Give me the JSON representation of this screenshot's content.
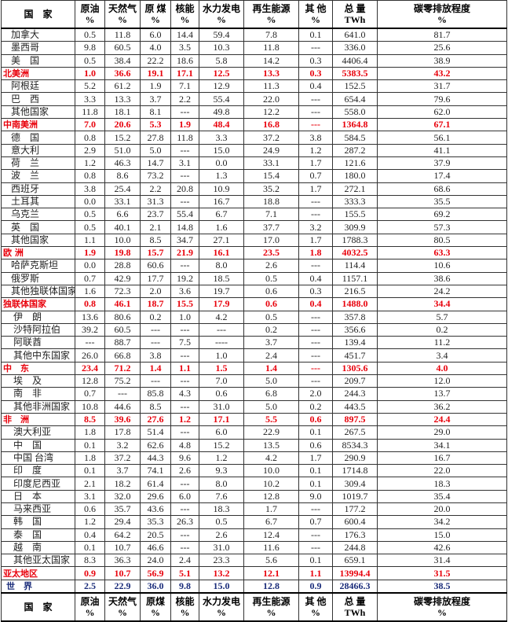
{
  "headers": [
    [
      "国　家",
      ""
    ],
    [
      "原油",
      "%"
    ],
    [
      "天然气",
      "%"
    ],
    [
      "原 煤",
      "%"
    ],
    [
      "核能",
      "%"
    ],
    [
      "水力发电",
      "%"
    ],
    [
      "再生能源",
      "%"
    ],
    [
      "其 他",
      "%"
    ],
    [
      "总 量",
      "TWh"
    ],
    [
      "碳零排放程度",
      "%"
    ]
  ],
  "footer_headers": [
    [
      "国　家",
      ""
    ],
    [
      "原油",
      "%"
    ],
    [
      "天然气",
      "%"
    ],
    [
      "原煤",
      "%"
    ],
    [
      "核能",
      "%"
    ],
    [
      "水力发电",
      "%"
    ],
    [
      "再生能源",
      "%"
    ],
    [
      "其 他",
      "%"
    ],
    [
      "总 量",
      "TWh"
    ],
    [
      "碳零排放程度",
      "%"
    ]
  ],
  "colors": {
    "region": "#e8000b",
    "world": "#1a2c7a"
  },
  "rows": [
    {
      "t": "c",
      "v": [
        "加拿大",
        "0.5",
        "11.8",
        "6.0",
        "14.4",
        "59.4",
        "7.8",
        "0.1",
        "641.0",
        "81.7"
      ]
    },
    {
      "t": "c",
      "v": [
        "墨西哥",
        "9.8",
        "60.5",
        "4.0",
        "3.5",
        "10.3",
        "11.8",
        "---",
        "336.0",
        "25.6"
      ]
    },
    {
      "t": "c",
      "v": [
        "美　国",
        "0.5",
        "38.4",
        "22.2",
        "18.6",
        "5.8",
        "14.2",
        "0.3",
        "4406.4",
        "38.9"
      ]
    },
    {
      "t": "r",
      "v": [
        "北美洲",
        "1.0",
        "36.6",
        "19.1",
        "17.1",
        "12.5",
        "13.3",
        "0.3",
        "5383.5",
        "43.2"
      ]
    },
    {
      "t": "c",
      "v": [
        "阿根廷",
        "5.2",
        "61.2",
        "1.9",
        "7.1",
        "12.9",
        "11.3",
        "0.4",
        "152.5",
        "31.7"
      ]
    },
    {
      "t": "c",
      "v": [
        "巴　西",
        "3.3",
        "13.3",
        "3.7",
        "2.2",
        "55.4",
        "22.0",
        "---",
        "654.4",
        "79.6"
      ]
    },
    {
      "t": "c",
      "v": [
        "其他国家",
        "11.8",
        "18.1",
        "8.1",
        "---",
        "49.8",
        "12.2",
        "---",
        "558.0",
        "62.0"
      ]
    },
    {
      "t": "r",
      "v": [
        "中南美洲",
        "7.0",
        "20.6",
        "5.3",
        "1.9",
        "48.4",
        "16.8",
        "---",
        "1364.8",
        "67.1"
      ]
    },
    {
      "t": "c",
      "v": [
        "德　国",
        "0.8",
        "15.2",
        "27.8",
        "11.8",
        "3.3",
        "37.2",
        "3.8",
        "584.5",
        "56.1"
      ]
    },
    {
      "t": "c",
      "v": [
        "意大利",
        "2.9",
        "51.0",
        "5.0",
        "---",
        "15.0",
        "24.9",
        "1.2",
        "287.2",
        "41.1"
      ]
    },
    {
      "t": "c",
      "v": [
        "荷　兰",
        "1.2",
        "46.3",
        "14.7",
        "3.1",
        "0.0",
        "33.1",
        "1.7",
        "121.6",
        "37.9"
      ]
    },
    {
      "t": "c",
      "v": [
        "波　兰",
        "0.8",
        "8.6",
        "73.2",
        "---",
        "1.3",
        "15.4",
        "0.7",
        "180.0",
        "17.4"
      ]
    },
    {
      "t": "c",
      "v": [
        "西班牙",
        "3.8",
        "25.4",
        "2.2",
        "20.8",
        "10.9",
        "35.2",
        "1.7",
        "272.1",
        "68.6"
      ]
    },
    {
      "t": "c",
      "v": [
        "土耳其",
        "0.0",
        "33.1",
        "31.3",
        "---",
        "16.7",
        "18.8",
        "---",
        "333.3",
        "35.5"
      ]
    },
    {
      "t": "c",
      "v": [
        "乌克兰",
        "0.5",
        "6.6",
        "23.7",
        "55.4",
        "6.7",
        "7.1",
        "---",
        "155.5",
        "69.2"
      ]
    },
    {
      "t": "c",
      "v": [
        "英　国",
        "0.5",
        "40.1",
        "2.1",
        "14.8",
        "1.6",
        "37.7",
        "3.2",
        "309.9",
        "57.3"
      ]
    },
    {
      "t": "c",
      "v": [
        "其他国家",
        "1.1",
        "10.0",
        "8.5",
        "34.7",
        "27.1",
        "17.0",
        "1.7",
        "1788.3",
        "80.5"
      ]
    },
    {
      "t": "r",
      "v": [
        "欧 洲",
        "1.9",
        "19.8",
        "15.7",
        "21.9",
        "16.1",
        "23.5",
        "1.8",
        "4032.5",
        "63.3"
      ]
    },
    {
      "t": "c",
      "v": [
        "哈萨克斯坦",
        "0.0",
        "28.8",
        "60.6",
        "---",
        "8.0",
        "2.6",
        "---",
        "114.4",
        "10.6"
      ]
    },
    {
      "t": "c",
      "v": [
        "俄罗斯",
        "0.7",
        "42.9",
        "17.7",
        "19.2",
        "18.5",
        "0.5",
        "0.4",
        "1157.1",
        "38.6"
      ]
    },
    {
      "t": "c",
      "v": [
        "其他独联体国家",
        "1.6",
        "72.3",
        "2.0",
        "3.6",
        "19.7",
        "0.6",
        "0.3",
        "216.5",
        "24.2"
      ]
    },
    {
      "t": "r",
      "v": [
        "独联体国家",
        "0.8",
        "46.1",
        "18.7",
        "15.5",
        "17.9",
        "0.6",
        "0.4",
        "1488.0",
        "34.4"
      ]
    },
    {
      "t": "c",
      "v": [
        " 伊　朗",
        "13.6",
        "80.6",
        "0.2",
        "1.0",
        "4.2",
        "0.5",
        "---",
        "357.8",
        "5.7"
      ]
    },
    {
      "t": "c",
      "v": [
        " 沙特阿拉伯",
        "39.2",
        "60.5",
        "---",
        "---",
        "---",
        "0.2",
        "---",
        "356.6",
        "0.2"
      ]
    },
    {
      "t": "c",
      "v": [
        " 阿联酋",
        "---",
        "88.7",
        "---",
        "7.5",
        "----",
        "3.7",
        "---",
        "139.4",
        "11.2"
      ]
    },
    {
      "t": "c",
      "v": [
        " 其他中东国家",
        "26.0",
        "66.8",
        "3.8",
        "---",
        "1.0",
        "2.4",
        "---",
        "451.7",
        "3.4"
      ]
    },
    {
      "t": "r",
      "v": [
        "中　东",
        "23.4",
        "71.2",
        "1.4",
        "1.1",
        "1.5",
        "1.4",
        "---",
        "1305.6",
        "4.0"
      ]
    },
    {
      "t": "c",
      "v": [
        " 埃　及",
        "12.8",
        "75.2",
        "---",
        "---",
        "7.0",
        "5.0",
        "---",
        "209.7",
        "12.0"
      ]
    },
    {
      "t": "c",
      "v": [
        " 南　非",
        "0.7",
        "---",
        "85.8",
        "4.3",
        "0.6",
        "6.8",
        "2.0",
        "244.3",
        "13.7"
      ]
    },
    {
      "t": "c",
      "v": [
        " 其他非洲国家",
        "10.8",
        "44.6",
        "8.5",
        "---",
        "31.0",
        "5.0",
        "0.2",
        "443.5",
        "36.2"
      ]
    },
    {
      "t": "r",
      "v": [
        "非　洲",
        "8.5",
        "39.6",
        "27.6",
        "1.2",
        "17.1",
        "5.5",
        "0.6",
        "897.5",
        "24.4"
      ]
    },
    {
      "t": "c",
      "v": [
        " 澳大利亚",
        "1.8",
        "17.8",
        "51.4",
        "---",
        "6.0",
        "22.9",
        "0.1",
        "267.5",
        "29.0"
      ]
    },
    {
      "t": "c",
      "v": [
        " 中　国",
        "0.1",
        "3.2",
        "62.6",
        "4.8",
        "15.2",
        "13.5",
        "0.6",
        "8534.3",
        "34.1"
      ]
    },
    {
      "t": "c",
      "v": [
        " 中国 台湾",
        "1.8",
        "37.2",
        "44.3",
        "9.6",
        "1.2",
        "4.2",
        "1.7",
        "290.9",
        "16.7"
      ]
    },
    {
      "t": "c",
      "v": [
        " 印　度",
        "0.1",
        "3.7",
        "74.1",
        "2.6",
        "9.3",
        "10.0",
        "0.1",
        "1714.8",
        "22.0"
      ]
    },
    {
      "t": "c",
      "v": [
        " 印度尼西亚",
        "2.1",
        "18.2",
        "61.4",
        "---",
        "8.0",
        "10.2",
        "0.1",
        "309.4",
        "18.3"
      ]
    },
    {
      "t": "c",
      "v": [
        " 日　本",
        "3.1",
        "32.0",
        "29.6",
        "6.0",
        "7.6",
        "12.8",
        "9.0",
        "1019.7",
        "35.4"
      ]
    },
    {
      "t": "c",
      "v": [
        " 马来西亚",
        "0.6",
        "35.7",
        "43.6",
        "---",
        "18.3",
        "1.7",
        "---",
        "177.2",
        "20.0"
      ]
    },
    {
      "t": "c",
      "v": [
        " 韩　国",
        "1.2",
        "29.4",
        "35.3",
        "26.3",
        "0.5",
        "6.7",
        "0.7",
        "600.4",
        "34.2"
      ]
    },
    {
      "t": "c",
      "v": [
        " 泰　国",
        "0.4",
        "64.2",
        "20.5",
        "---",
        "2.6",
        "12.4",
        "---",
        "176.3",
        "15.0"
      ]
    },
    {
      "t": "c",
      "v": [
        " 越　南",
        "0.1",
        "10.7",
        "46.6",
        "---",
        "31.0",
        "11.6",
        "---",
        "244.8",
        "42.6"
      ]
    },
    {
      "t": "c",
      "v": [
        " 其他亚太国家",
        "8.3",
        "36.3",
        "24.0",
        "2.4",
        "23.3",
        "5.6",
        "0.1",
        "659.1",
        "31.4"
      ]
    },
    {
      "t": "r",
      "v": [
        "亚太地区",
        "0.9",
        "10.7",
        "56.9",
        "5.1",
        "13.2",
        "12.1",
        "1.1",
        "13994.4",
        "31.5"
      ]
    },
    {
      "t": "w",
      "v": [
        "世　界",
        "2.5",
        "22.9",
        "36.0",
        "9.8",
        "15.0",
        "12.8",
        "0.9",
        "28466.3",
        "38.5"
      ]
    }
  ]
}
